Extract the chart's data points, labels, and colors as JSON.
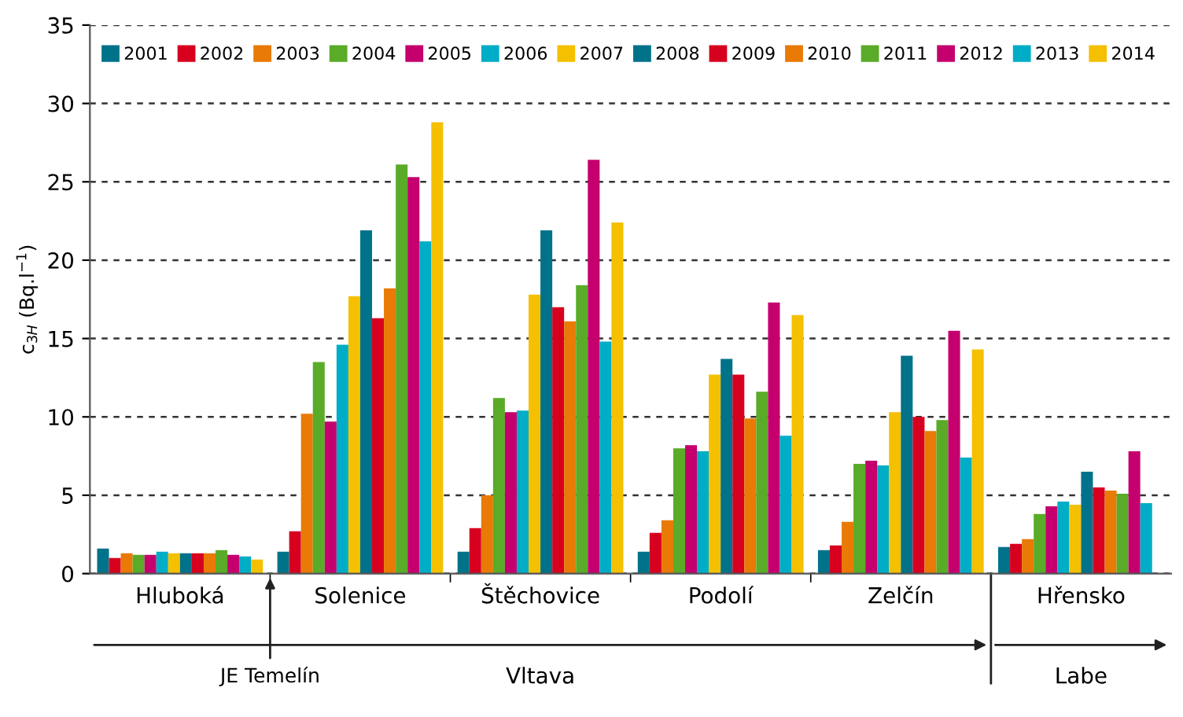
{
  "chart_data": {
    "type": "bar",
    "ylabel": "c$_{3H}$ (Bq.l$^{−1}$)",
    "categories": [
      "Hluboká",
      "Solenice",
      "Štěchovice",
      "Podolí",
      "Zelčín",
      "Hřensko"
    ],
    "series": [
      {
        "name": "2001",
        "color": "#00728a",
        "values": [
          1.6,
          1.4,
          1.4,
          1.4,
          1.5,
          1.7
        ]
      },
      {
        "name": "2002",
        "color": "#d7001f",
        "values": [
          1.0,
          2.7,
          2.9,
          2.6,
          1.8,
          1.9
        ]
      },
      {
        "name": "2003",
        "color": "#e87a05",
        "values": [
          1.3,
          10.2,
          5.0,
          3.4,
          3.3,
          2.2
        ]
      },
      {
        "name": "2004",
        "color": "#5aab28",
        "values": [
          1.2,
          13.5,
          11.2,
          8.0,
          7.0,
          3.8
        ]
      },
      {
        "name": "2005",
        "color": "#c5006e",
        "values": [
          1.2,
          9.7,
          10.3,
          8.2,
          7.2,
          4.3
        ]
      },
      {
        "name": "2006",
        "color": "#00adc7",
        "values": [
          1.4,
          14.6,
          10.4,
          7.8,
          6.9,
          4.6
        ]
      },
      {
        "name": "2007",
        "color": "#f4c000",
        "values": [
          1.3,
          17.7,
          17.8,
          12.7,
          10.3,
          4.4
        ]
      },
      {
        "name": "2008",
        "color": "#00728a",
        "values": [
          1.3,
          21.9,
          21.9,
          13.7,
          13.9,
          6.5
        ]
      },
      {
        "name": "2009",
        "color": "#d7001f",
        "values": [
          1.3,
          16.3,
          17.0,
          12.7,
          10.0,
          5.5
        ]
      },
      {
        "name": "2010",
        "color": "#e87a05",
        "values": [
          1.3,
          18.2,
          16.1,
          9.9,
          9.1,
          5.3
        ]
      },
      {
        "name": "2011",
        "color": "#5aab28",
        "values": [
          1.5,
          26.1,
          18.4,
          11.6,
          9.8,
          5.1
        ]
      },
      {
        "name": "2012",
        "color": "#c5006e",
        "values": [
          1.2,
          25.3,
          26.4,
          17.3,
          15.5,
          7.8
        ]
      },
      {
        "name": "2013",
        "color": "#00adc7",
        "values": [
          1.1,
          21.2,
          14.8,
          8.8,
          7.4,
          4.5
        ]
      },
      {
        "name": "2014",
        "color": "#f4c000",
        "values": [
          0.9,
          28.8,
          22.4,
          16.5,
          14.3,
          null
        ]
      }
    ],
    "ylim": [
      0,
      35
    ],
    "yticks": [
      0,
      5,
      10,
      15,
      20,
      25,
      30,
      35
    ],
    "grid": "y",
    "legend": "top",
    "annotations": [
      "JE Temelín",
      "Vltava",
      "Labe"
    ]
  }
}
